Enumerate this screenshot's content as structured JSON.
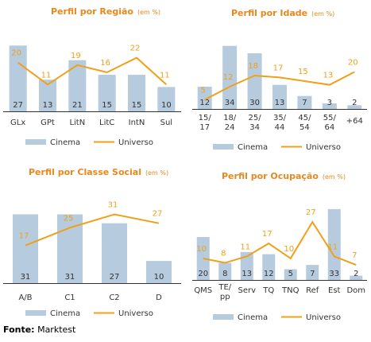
{
  "colors": {
    "title": "#E8881C",
    "bar": "#B7CBDF",
    "line": "#F0A018",
    "label_on_bar": "#333333",
    "axis": "#333333"
  },
  "legend": {
    "bar_label": "Cinema",
    "line_label": "Universo"
  },
  "source": {
    "label": "Fonte:",
    "value": "Marktest"
  },
  "chart_data": [
    {
      "type": "bar",
      "title": "Perfil por Região",
      "subtitle": "(em %)",
      "categories": [
        "GLx",
        "GPt",
        "LitN",
        "LitC",
        "IntN",
        "Sul"
      ],
      "series": [
        {
          "name": "Cinema",
          "type": "bar",
          "values": [
            27,
            13,
            21,
            15,
            15,
            10
          ]
        },
        {
          "name": "Universo",
          "type": "line",
          "values": [
            20,
            11,
            19,
            16,
            22,
            11
          ]
        }
      ],
      "ylim": [
        0,
        31
      ]
    },
    {
      "type": "bar",
      "title": "Perfil por Idade",
      "subtitle": "(em %)",
      "categories": [
        "15/\n17",
        "18/\n24",
        "25/\n34",
        "35/\n44",
        "45/\n54",
        "55/\n64",
        "+64"
      ],
      "series": [
        {
          "name": "Cinema",
          "type": "bar",
          "values": [
            12,
            34,
            30,
            13,
            7,
            3,
            2
          ]
        },
        {
          "name": "Universo",
          "type": "line",
          "values": [
            5,
            12,
            18,
            17,
            15,
            13,
            20
          ]
        }
      ],
      "ylim": [
        0,
        39
      ]
    },
    {
      "type": "bar",
      "title": "Perfil por Classe Social",
      "subtitle": "(em %)",
      "categories": [
        "A/B",
        "C1",
        "C2",
        "D"
      ],
      "series": [
        {
          "name": "Cinema",
          "type": "bar",
          "values": [
            31,
            31,
            27,
            10
          ]
        },
        {
          "name": "Universo",
          "type": "line",
          "values": [
            17,
            25,
            31,
            27
          ]
        }
      ],
      "ylim": [
        0,
        38
      ]
    },
    {
      "type": "bar",
      "title": "Perfil por Ocupação",
      "subtitle": "(em %)",
      "categories": [
        "QMS",
        "TE/\npp",
        "Serv",
        "TQ",
        "TNQ",
        "Ref",
        "Est",
        "Dom"
      ],
      "series": [
        {
          "name": "Cinema",
          "type": "bar",
          "values": [
            20,
            8,
            13,
            12,
            5,
            7,
            33,
            2
          ]
        },
        {
          "name": "Universo",
          "type": "line",
          "values": [
            10,
            8,
            11,
            17,
            10,
            27,
            11,
            7
          ]
        }
      ],
      "ylim": [
        0,
        40
      ]
    }
  ]
}
